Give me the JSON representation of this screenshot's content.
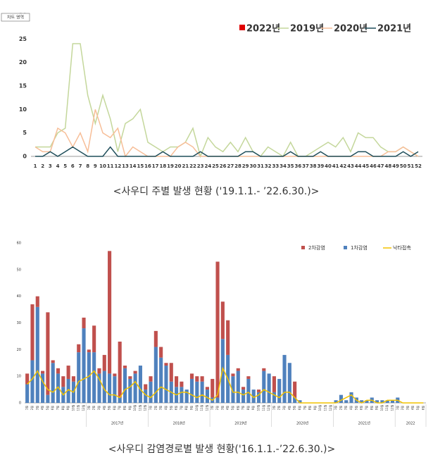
{
  "chart_data": [
    {
      "type": "line",
      "annotation": "차트 영역",
      "caption": "<사우디 주별 발생 현황 ('19.1.1.- ’22.6.30.)>",
      "x": [
        1,
        2,
        3,
        4,
        5,
        6,
        7,
        8,
        9,
        10,
        11,
        12,
        13,
        14,
        15,
        16,
        17,
        18,
        19,
        20,
        21,
        22,
        23,
        24,
        25,
        26,
        27,
        28,
        29,
        30,
        31,
        32,
        33,
        34,
        35,
        36,
        37,
        38,
        39,
        40,
        41,
        42,
        43,
        44,
        45,
        46,
        47,
        48,
        49,
        50,
        51,
        52
      ],
      "xlim": [
        1,
        52
      ],
      "ylim": [
        0,
        30
      ],
      "yticks": [
        0,
        5,
        10,
        15,
        20,
        25,
        30
      ],
      "series": [
        {
          "name": "2022년",
          "color": "#e00000",
          "values": [
            null,
            null,
            null,
            null,
            null,
            null,
            null,
            null,
            null,
            null,
            null,
            null,
            null,
            null,
            null,
            null,
            null,
            null,
            null,
            null,
            null,
            null,
            null,
            null,
            null,
            null,
            null,
            null,
            null,
            null,
            null,
            null,
            null,
            null,
            null,
            null,
            null,
            null,
            null,
            null,
            null,
            null,
            null,
            null,
            null,
            null,
            null,
            null,
            null,
            null,
            null,
            null
          ]
        },
        {
          "name": "2019년",
          "color": "#c4d79b",
          "values": [
            2,
            2,
            2,
            5,
            6,
            24,
            24,
            13,
            7,
            13,
            8,
            1,
            7,
            8,
            10,
            3,
            2,
            1,
            2,
            2,
            3,
            6,
            0,
            4,
            2,
            1,
            3,
            1,
            4,
            1,
            0,
            2,
            1,
            0,
            3,
            0,
            0,
            1,
            2,
            3,
            2,
            4,
            1,
            5,
            4,
            4,
            2,
            1,
            1,
            2,
            1,
            0
          ]
        },
        {
          "name": "2020년",
          "color": "#f7be98",
          "values": [
            2,
            1,
            1,
            6,
            5,
            2,
            5,
            1,
            10,
            5,
            4,
            6,
            0,
            2,
            1,
            0,
            0,
            0,
            0,
            2,
            3,
            2,
            0,
            0,
            0,
            0,
            0,
            0,
            0,
            0,
            0,
            0,
            0,
            0,
            0,
            0,
            0,
            0,
            0,
            0,
            0,
            0,
            0,
            0,
            0,
            0,
            0,
            1,
            1,
            2,
            1,
            0
          ]
        },
        {
          "name": "2021년",
          "color": "#1f4e5a",
          "values": [
            0,
            0,
            1,
            0,
            1,
            2,
            1,
            0,
            0,
            0,
            2,
            0,
            0,
            0,
            0,
            0,
            0,
            1,
            0,
            0,
            0,
            0,
            1,
            0,
            0,
            0,
            0,
            0,
            1,
            1,
            0,
            0,
            0,
            0,
            1,
            0,
            0,
            0,
            1,
            0,
            0,
            0,
            0,
            1,
            1,
            0,
            0,
            0,
            0,
            1,
            0,
            1
          ]
        }
      ]
    },
    {
      "type": "bar",
      "stacked": true,
      "caption": "<사우디 감염경로별 발생 현황('16.1.1.-’22.6.30.)>",
      "categories": [
        "1월",
        "2월",
        "3월",
        "4월",
        "5월",
        "6월",
        "7월",
        "8월",
        "9월",
        "10월",
        "11월",
        "12월",
        "1월",
        "2월",
        "3월",
        "4월",
        "5월",
        "6월",
        "7월",
        "8월",
        "9월",
        "10월",
        "11월",
        "12월",
        "1월",
        "2월",
        "3월",
        "4월",
        "5월",
        "6월",
        "7월",
        "8월",
        "9월",
        "10월",
        "11월",
        "12월",
        "1월",
        "2월",
        "3월",
        "4월",
        "5월",
        "6월",
        "7월",
        "8월",
        "9월",
        "10월",
        "11월",
        "12월",
        "1월",
        "2월",
        "3월",
        "4월",
        "5월",
        "6월",
        "7월",
        "8월",
        "9월",
        "10월",
        "11월",
        "12월",
        "1월",
        "2월",
        "3월",
        "4월",
        "5월",
        "6월",
        "7월",
        "8월",
        "9월",
        "10월",
        "11월",
        "12월",
        "1월",
        "2월",
        "3월",
        "4월",
        "5월",
        "6월"
      ],
      "groups": [
        null,
        "2017년",
        "2018년",
        "2019년",
        "2020년",
        "2021년",
        "2022"
      ],
      "ylim": [
        0,
        60
      ],
      "yticks": [
        0,
        10,
        20,
        30,
        40,
        50,
        60
      ],
      "series": [
        {
          "name": "2차감염",
          "color": "#c0504d",
          "values": [
            4,
            21,
            4,
            1,
            31,
            1,
            2,
            4,
            5,
            2,
            3,
            4,
            1,
            10,
            2,
            6,
            46,
            1,
            21,
            1,
            1,
            1,
            0,
            2,
            2,
            6,
            4,
            1,
            7,
            4,
            2,
            0,
            2,
            2,
            2,
            1,
            7,
            51,
            14,
            13,
            1,
            1,
            1,
            1,
            0,
            1,
            1,
            0,
            6,
            0,
            0,
            0,
            6,
            0,
            0,
            0,
            0,
            0,
            0,
            0,
            0,
            0,
            0,
            0,
            0,
            0,
            0,
            0,
            0,
            0,
            0,
            0,
            0,
            0,
            0,
            0,
            0,
            0
          ]
        },
        {
          "name": "1차감염",
          "color": "#4f81bd",
          "values": [
            7,
            16,
            36,
            11,
            3,
            15,
            11,
            6,
            9,
            8,
            19,
            28,
            19,
            19,
            11,
            12,
            11,
            10,
            2,
            13,
            9,
            11,
            14,
            5,
            8,
            21,
            17,
            14,
            8,
            6,
            6,
            5,
            9,
            8,
            8,
            5,
            2,
            2,
            24,
            18,
            10,
            12,
            5,
            9,
            5,
            4,
            12,
            11,
            4,
            9,
            18,
            15,
            2,
            1,
            0,
            0,
            0,
            0,
            0,
            0,
            1,
            3,
            1,
            4,
            2,
            1,
            1,
            2,
            1,
            1,
            1,
            1,
            2,
            0,
            0,
            0,
            0,
            0
          ]
        },
        {
          "name": "낙타접촉",
          "type": "line",
          "color": "#f2c200",
          "values": [
            7,
            9,
            12,
            8,
            5,
            4,
            6,
            3,
            5,
            4,
            8,
            9,
            10,
            12,
            9,
            5,
            3,
            3,
            2,
            5,
            6,
            8,
            5,
            3,
            2,
            4,
            6,
            5,
            4,
            3,
            4,
            4,
            3,
            2,
            3,
            2,
            1,
            3,
            13,
            9,
            4,
            4,
            3,
            4,
            2,
            3,
            5,
            4,
            3,
            2,
            4,
            4,
            2,
            0,
            0,
            0,
            0,
            0,
            0,
            0,
            0,
            1,
            2,
            3,
            1,
            0,
            1,
            1,
            0,
            0,
            1,
            1,
            1,
            0,
            0,
            0,
            0,
            0
          ]
        }
      ]
    }
  ]
}
